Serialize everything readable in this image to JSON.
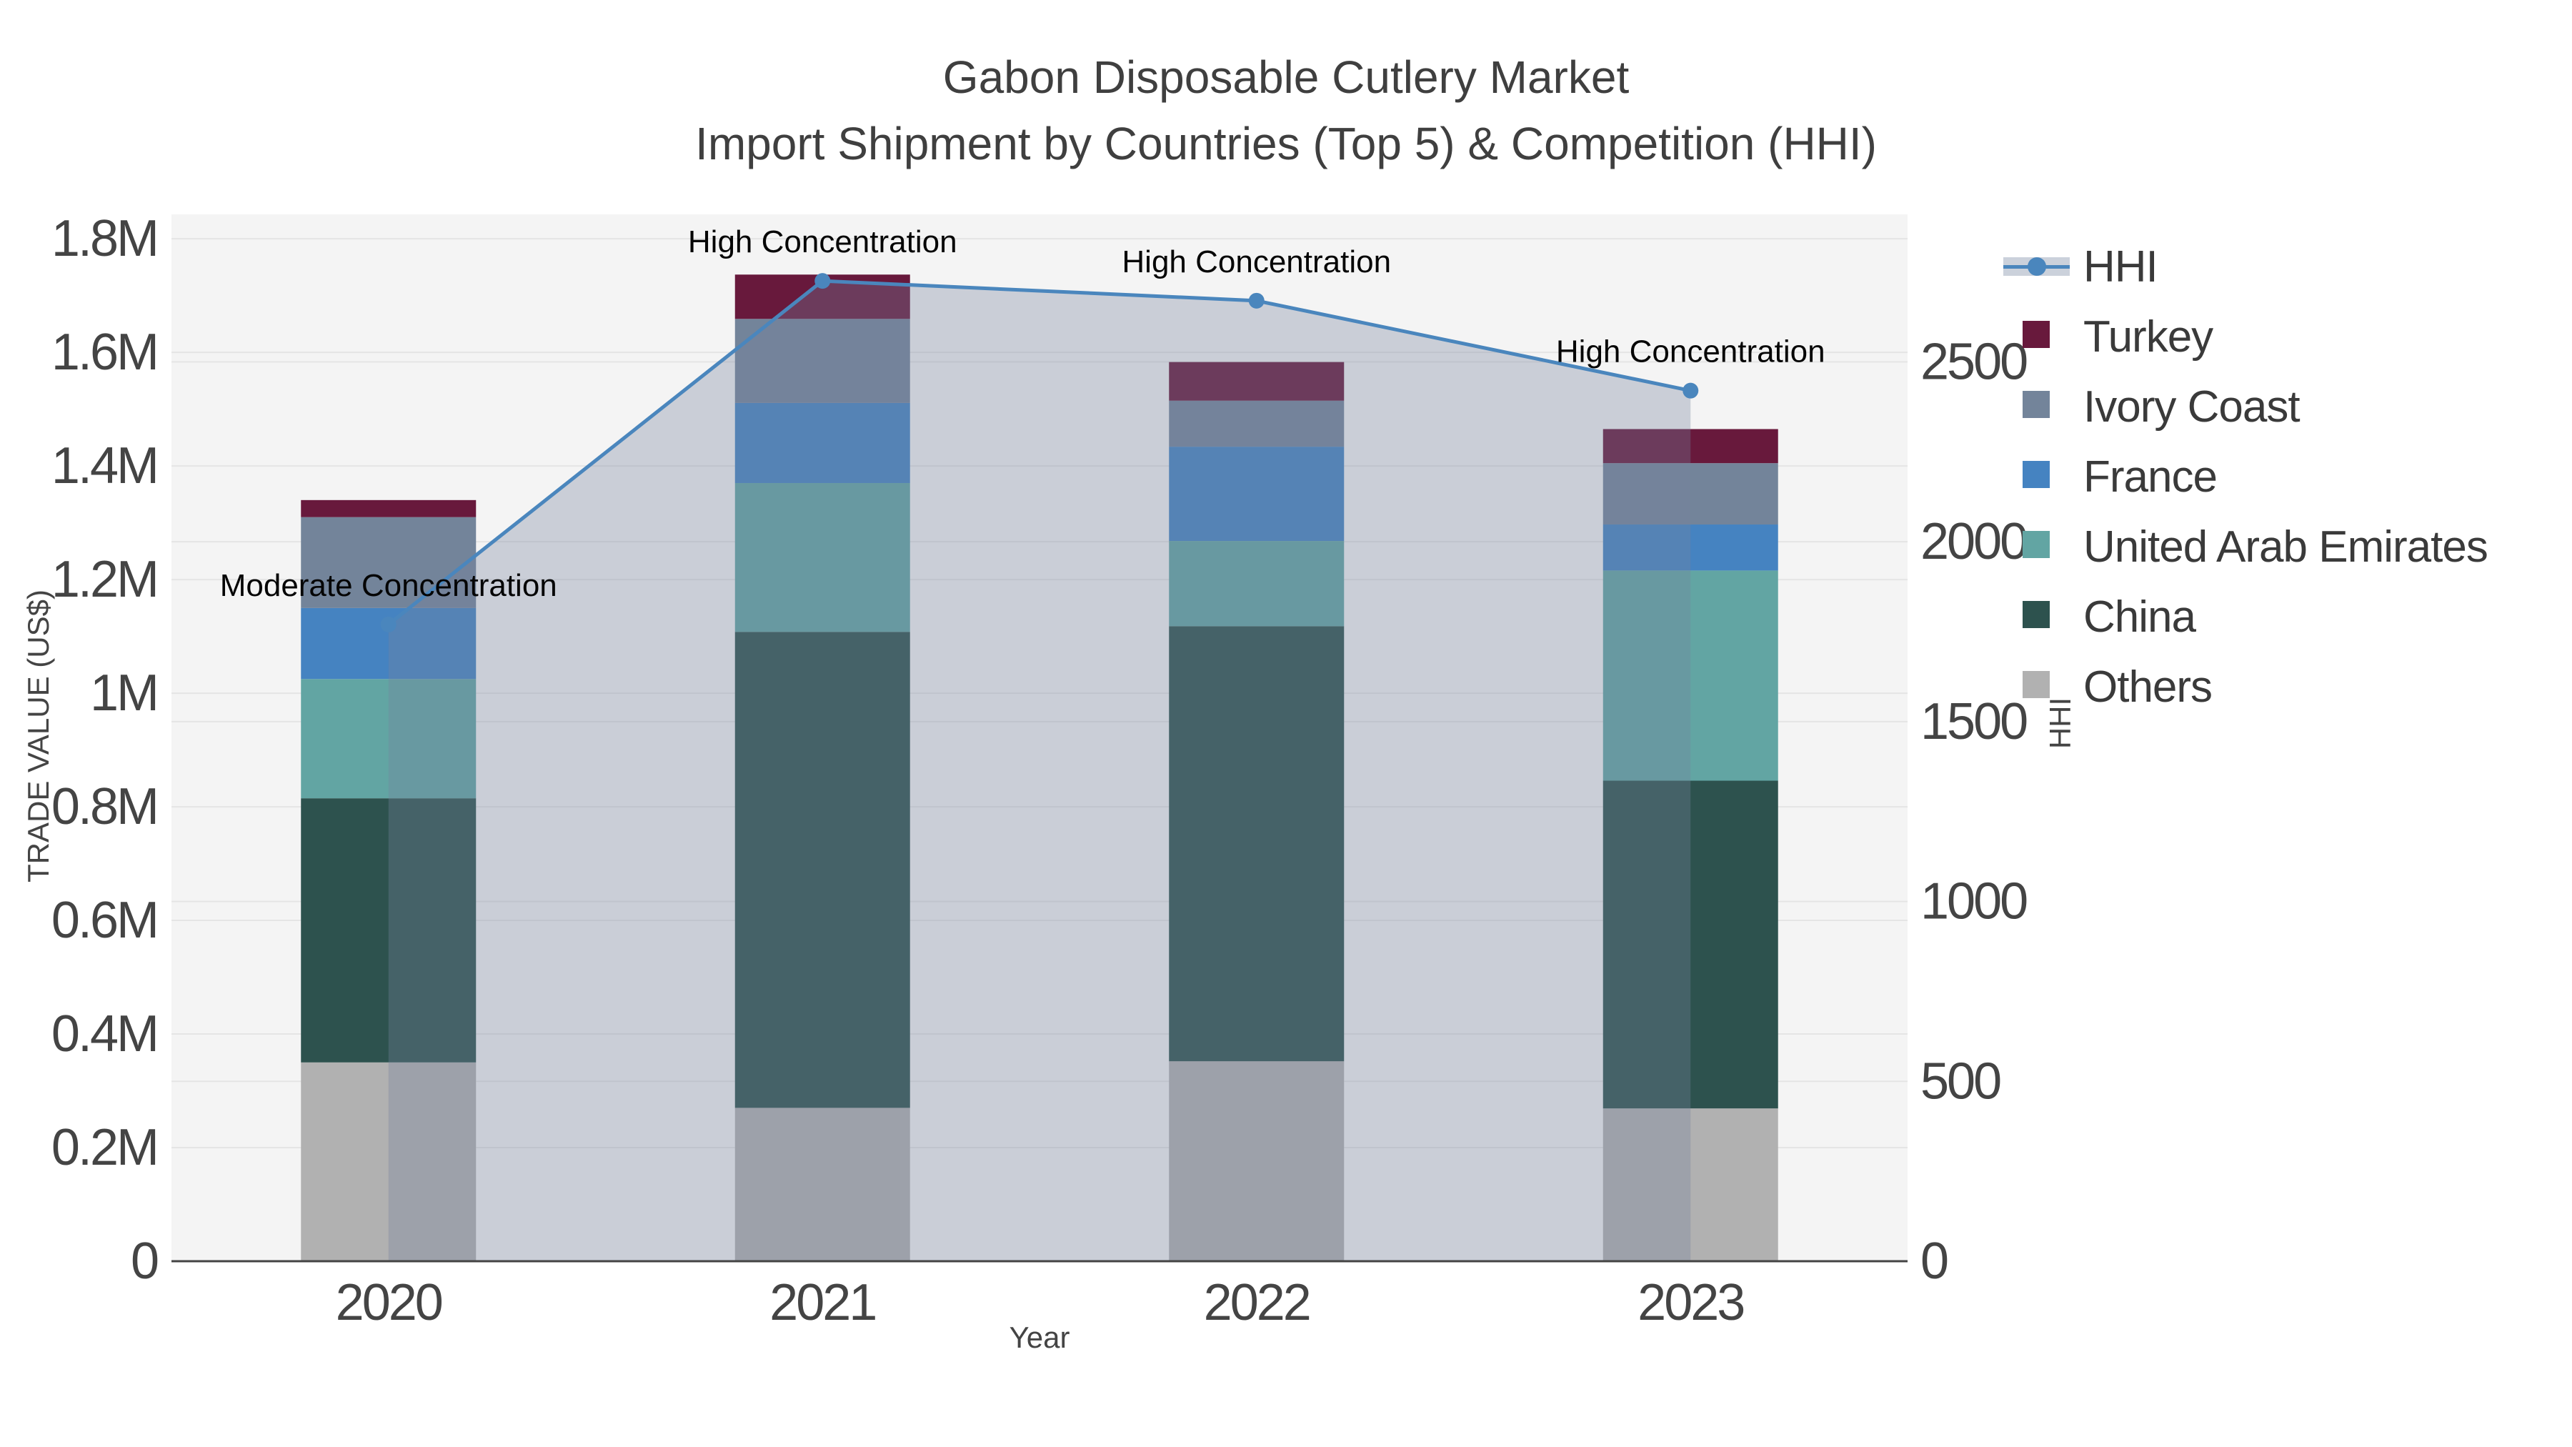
{
  "title": {
    "line1": "Gabon Disposable Cutlery Market",
    "line2": "Import Shipment by Countries (Top 5) & Competition (HHI)"
  },
  "axes": {
    "x_title": "Year",
    "y_left_title": "TRADE VALUE (US$)",
    "y_right_title": "HHI"
  },
  "chart_data": {
    "type": "bar",
    "subtype": "stacked-bars-with-line",
    "categories": [
      "2020",
      "2021",
      "2022",
      "2023"
    ],
    "series": [
      {
        "name": "Turkey",
        "color": "#68193C",
        "values": [
          30000,
          78000,
          68000,
          60000
        ]
      },
      {
        "name": "Ivory Coast",
        "color": "#73849A",
        "values": [
          160000,
          148000,
          81000,
          108000
        ]
      },
      {
        "name": "France",
        "color": "#4583C1",
        "values": [
          125000,
          141000,
          166000,
          81000
        ]
      },
      {
        "name": "United Arab Emirates",
        "color": "#62A5A3",
        "values": [
          210000,
          262000,
          150000,
          370000
        ]
      },
      {
        "name": "China",
        "color": "#2D524E",
        "values": [
          465000,
          838000,
          766000,
          577000
        ]
      },
      {
        "name": "Others",
        "color": "#B1B1B1",
        "values": [
          350000,
          270000,
          352000,
          269000
        ]
      }
    ],
    "line_series": {
      "name": "HHI",
      "axis": "right",
      "color": "#4A86BD",
      "fill_color": "rgba(118,130,158,0.33)",
      "values": [
        1770,
        2725,
        2670,
        2420
      ]
    },
    "totals": [
      1340000,
      1737000,
      1583000,
      1465000
    ],
    "y_left": {
      "label": "TRADE VALUE (US$)",
      "max": 1843000,
      "ticks": [
        {
          "label": "0",
          "value": 0
        },
        {
          "label": "0.2M",
          "value": 200000
        },
        {
          "label": "0.4M",
          "value": 400000
        },
        {
          "label": "0.6M",
          "value": 600000
        },
        {
          "label": "0.8M",
          "value": 800000
        },
        {
          "label": "1M",
          "value": 1000000
        },
        {
          "label": "1.2M",
          "value": 1200000
        },
        {
          "label": "1.4M",
          "value": 1400000
        },
        {
          "label": "1.6M",
          "value": 1600000
        },
        {
          "label": "1.8M",
          "value": 1800000
        }
      ]
    },
    "y_right": {
      "label": "HHI",
      "max": 2910,
      "ticks": [
        {
          "label": "0",
          "value": 0
        },
        {
          "label": "500",
          "value": 500
        },
        {
          "label": "1000",
          "value": 1000
        },
        {
          "label": "1500",
          "value": 1500
        },
        {
          "label": "2000",
          "value": 2000
        },
        {
          "label": "2500",
          "value": 2500
        }
      ]
    },
    "annotations": [
      {
        "category_index": 0,
        "text": "Moderate Concentration"
      },
      {
        "category_index": 1,
        "text": "High Concentration"
      },
      {
        "category_index": 2,
        "text": "High Concentration"
      },
      {
        "category_index": 3,
        "text": "High Concentration"
      }
    ],
    "style": {
      "plot_bg": "#F4F4F4",
      "grid_color": "#E5E5E5",
      "axis_line_color": "#444444",
      "tick_color": "#444444",
      "title_color": "#3F3F3F",
      "annotation_color": "#050505"
    },
    "legend_position": "right",
    "grid": true
  },
  "legend": {
    "items": [
      {
        "label": "HHI",
        "type": "line",
        "color": "#4A86BD",
        "band_color": "#CBD1DB"
      },
      {
        "label": "Turkey",
        "type": "swatch",
        "color": "#68193C"
      },
      {
        "label": "Ivory Coast",
        "type": "swatch",
        "color": "#73849A"
      },
      {
        "label": "France",
        "type": "swatch",
        "color": "#4583C1"
      },
      {
        "label": "United Arab Emirates",
        "type": "swatch",
        "color": "#62A5A3"
      },
      {
        "label": "China",
        "type": "swatch",
        "color": "#2D524E"
      },
      {
        "label": "Others",
        "type": "swatch",
        "color": "#B1B1B1"
      }
    ]
  }
}
